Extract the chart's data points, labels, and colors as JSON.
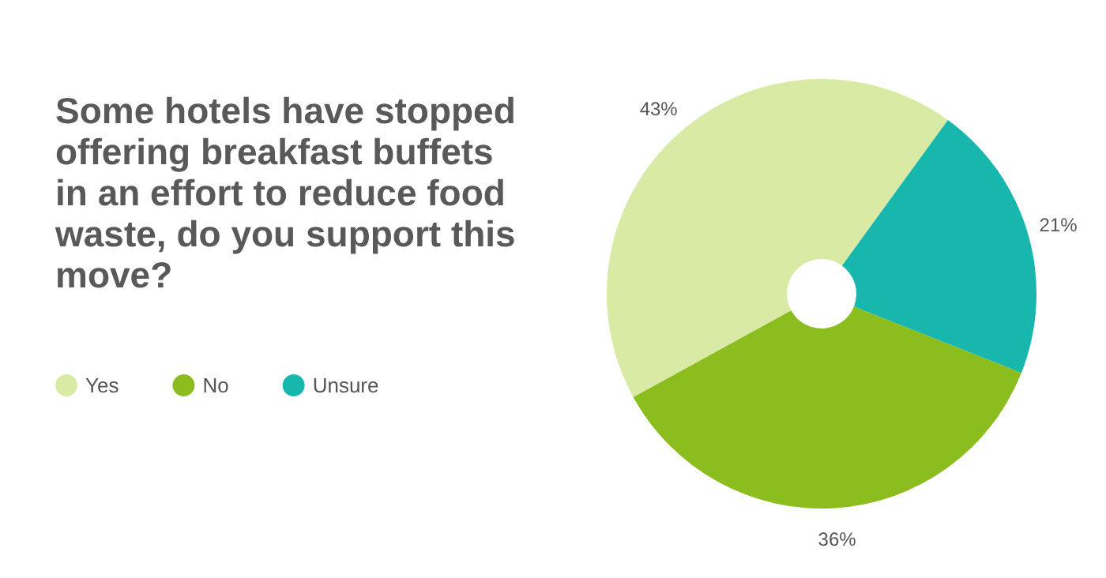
{
  "chart_data": {
    "type": "donut",
    "title": "Some hotels have stopped offering breakfast buffets in an effort to reduce food waste, do you support this move?",
    "categories": [
      "Yes",
      "No",
      "Unsure"
    ],
    "values": [
      43,
      36,
      21
    ],
    "value_labels": [
      "43%",
      "36%",
      "21%"
    ],
    "colors": [
      "#d9eaa4",
      "#8bbd1e",
      "#17b7ae"
    ],
    "legend": "left"
  }
}
